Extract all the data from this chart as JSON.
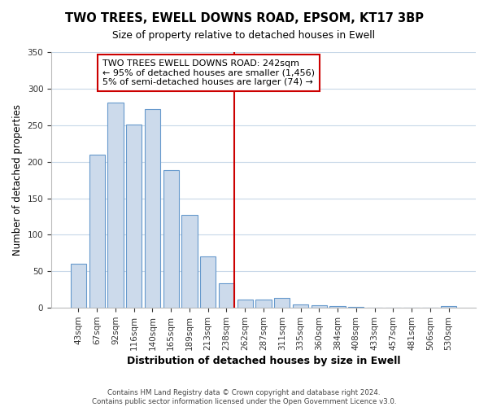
{
  "title": "TWO TREES, EWELL DOWNS ROAD, EPSOM, KT17 3BP",
  "subtitle": "Size of property relative to detached houses in Ewell",
  "xlabel": "Distribution of detached houses by size in Ewell",
  "ylabel": "Number of detached properties",
  "bar_color": "#ccdaeb",
  "bar_edge_color": "#6699cc",
  "categories": [
    "43sqm",
    "67sqm",
    "92sqm",
    "116sqm",
    "140sqm",
    "165sqm",
    "189sqm",
    "213sqm",
    "238sqm",
    "262sqm",
    "287sqm",
    "311sqm",
    "335sqm",
    "360sqm",
    "384sqm",
    "408sqm",
    "433sqm",
    "457sqm",
    "481sqm",
    "506sqm",
    "530sqm"
  ],
  "values": [
    60,
    210,
    281,
    251,
    272,
    188,
    127,
    70,
    34,
    11,
    11,
    14,
    5,
    4,
    2,
    1,
    0,
    0,
    0,
    0,
    2
  ],
  "vline_idx": 8,
  "vline_color": "#cc0000",
  "ylim": [
    0,
    350
  ],
  "yticks": [
    0,
    50,
    100,
    150,
    200,
    250,
    300,
    350
  ],
  "annotation_title": "TWO TREES EWELL DOWNS ROAD: 242sqm",
  "annotation_line1": "← 95% of detached houses are smaller (1,456)",
  "annotation_line2": "5% of semi-detached houses are larger (74) →",
  "footer1": "Contains HM Land Registry data © Crown copyright and database right 2024.",
  "footer2": "Contains public sector information licensed under the Open Government Licence v3.0."
}
